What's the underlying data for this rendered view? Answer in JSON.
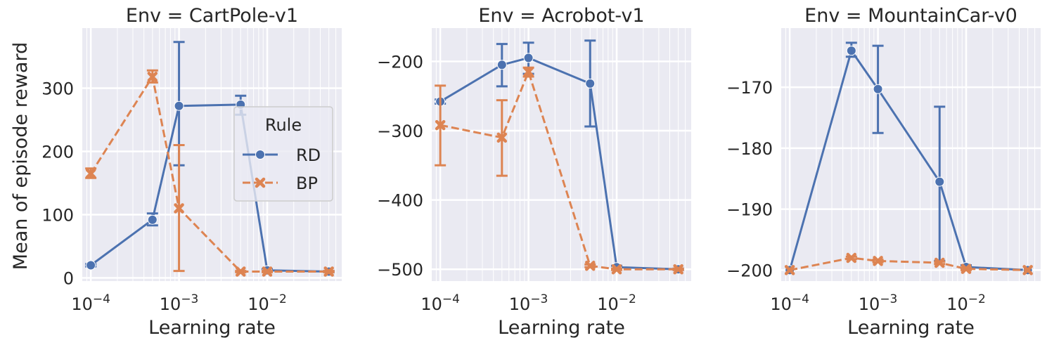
{
  "figure": {
    "ylabel": "Mean of episode reward",
    "legend": {
      "title": "Rule",
      "placement": "center-right of first panel",
      "entries": [
        {
          "name": "RD",
          "color": "#4c72b0",
          "marker": "circle",
          "linestyle": "solid"
        },
        {
          "name": "BP",
          "color": "#dd8452",
          "marker": "x",
          "linestyle": "dashed"
        }
      ]
    }
  },
  "chart_data": [
    {
      "type": "line",
      "title": "Env = CartPole-v1",
      "xlabel": "Learning rate",
      "ylabel": "Mean of episode reward",
      "xscale": "log",
      "xlim": [
        8e-05,
        0.07
      ],
      "ylim": [
        -5,
        395
      ],
      "yticks": [
        0,
        100,
        200,
        300
      ],
      "ytick_labels": [
        "0",
        "100",
        "200",
        "300"
      ],
      "xticks": [
        0.0001,
        0.001,
        0.01
      ],
      "xtick_labels": [
        "10−4",
        "10−3",
        "10−2"
      ],
      "grid": true,
      "series": [
        {
          "name": "RD",
          "x": [
            0.0001,
            0.0005,
            0.001,
            0.005,
            0.01,
            0.05
          ],
          "y": [
            20,
            92,
            272,
            274,
            12,
            10
          ],
          "err_low": [
            18,
            83,
            178,
            258,
            10,
            9
          ],
          "err_high": [
            22,
            102,
            373,
            288,
            14,
            11
          ]
        },
        {
          "name": "BP",
          "x": [
            0.0001,
            0.0005,
            0.001,
            0.005,
            0.01,
            0.05
          ],
          "y": [
            165,
            318,
            110,
            10,
            10,
            10
          ],
          "err_low": [
            158,
            309,
            11,
            9,
            9,
            9
          ],
          "err_high": [
            173,
            328,
            210,
            11,
            11,
            11
          ]
        }
      ]
    },
    {
      "type": "line",
      "title": "Env = Acrobot-v1",
      "xlabel": "Learning rate",
      "xscale": "log",
      "xlim": [
        8e-05,
        0.07
      ],
      "ylim": [
        -517,
        -152
      ],
      "yticks": [
        -500,
        -400,
        -300,
        -200
      ],
      "ytick_labels": [
        "−500",
        "−400",
        "−300",
        "−200"
      ],
      "xticks": [
        0.0001,
        0.001,
        0.01
      ],
      "xtick_labels": [
        "10−4",
        "10−3",
        "10−2"
      ],
      "grid": true,
      "series": [
        {
          "name": "RD",
          "x": [
            0.0001,
            0.0005,
            0.001,
            0.005,
            0.01,
            0.05
          ],
          "y": [
            -258,
            -205,
            -195,
            -232,
            -497,
            -500
          ],
          "err_low": [
            -261,
            -236,
            -218,
            -294,
            -499,
            -501
          ],
          "err_high": [
            -255,
            -175,
            -173,
            -170,
            -495,
            -499
          ]
        },
        {
          "name": "BP",
          "x": [
            0.0001,
            0.0005,
            0.001,
            0.005,
            0.01,
            0.05
          ],
          "y": [
            -292,
            -310,
            -215,
            -495,
            -500,
            -500
          ],
          "err_low": [
            -350,
            -365,
            -222,
            -497,
            -501,
            -501
          ],
          "err_high": [
            -235,
            -256,
            -209,
            -493,
            -499,
            -499
          ]
        }
      ]
    },
    {
      "type": "line",
      "title": "Env = MountainCar-v0",
      "xlabel": "Learning rate",
      "xscale": "log",
      "xlim": [
        8e-05,
        0.07
      ],
      "ylim": [
        -201.8,
        -160.3
      ],
      "yticks": [
        -200,
        -190,
        -180,
        -170
      ],
      "ytick_labels": [
        "−200",
        "−190",
        "−180",
        "−170"
      ],
      "xticks": [
        0.0001,
        0.001,
        0.01
      ],
      "xtick_labels": [
        "10−4",
        "10−3",
        "10−2"
      ],
      "grid": true,
      "series": [
        {
          "name": "RD",
          "x": [
            0.0001,
            0.0005,
            0.001,
            0.005,
            0.01,
            0.05
          ],
          "y": [
            -200,
            -164,
            -170.3,
            -185.5,
            -199.5,
            -200
          ],
          "err_low": [
            -200,
            -165,
            -177.5,
            -198.5,
            -199.8,
            -200
          ],
          "err_high": [
            -200,
            -162.7,
            -163.2,
            -173.2,
            -199.2,
            -200
          ]
        },
        {
          "name": "BP",
          "x": [
            0.0001,
            0.0005,
            0.001,
            0.005,
            0.01,
            0.05
          ],
          "y": [
            -200,
            -198,
            -198.5,
            -198.8,
            -199.8,
            -200
          ],
          "err_low": [
            -200,
            -198.2,
            -198.7,
            -199,
            -200,
            -200
          ],
          "err_high": [
            -200,
            -197.8,
            -198.3,
            -198.6,
            -199.6,
            -200
          ]
        }
      ]
    }
  ]
}
